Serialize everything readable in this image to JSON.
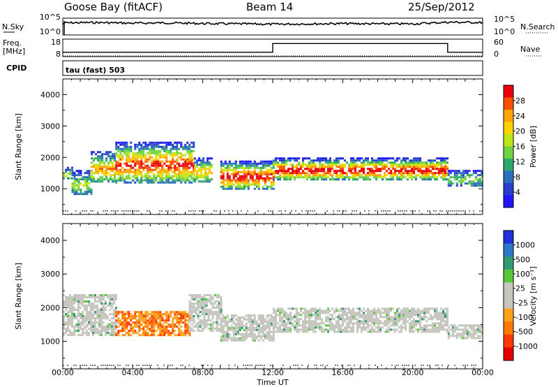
{
  "header": {
    "station": "Goose Bay (fitACF)",
    "beam": "Beam 14",
    "date": "25/Sep/2012"
  },
  "noise_panel": {
    "left_label": "N.Sky",
    "left_tick_top": "10^5",
    "left_tick_bottom": "10^0",
    "right_tick_top": "10^5",
    "right_tick_bottom": "10^0",
    "right_label": "N.Search"
  },
  "freq_panel": {
    "left_label_line1": "Freq.",
    "left_label_line2": "[MHz]",
    "left_tick_top": "18",
    "left_tick_bottom": "8",
    "right_tick_top": "60",
    "right_tick_bottom": "0",
    "right_label": "Nave"
  },
  "cpid_panel": {
    "label": "CPID",
    "value": "tau (fast) 503"
  },
  "time_axis": {
    "title": "Time UT",
    "ticks": [
      "00:00",
      "04:00",
      "08:00",
      "12:00",
      "16:00",
      "20:00",
      "00:00"
    ]
  },
  "range_axis": {
    "title": "Slant Range [km]",
    "ticks": [
      "1000",
      "2000",
      "3000",
      "4000"
    ]
  },
  "power_colorbar": {
    "title": "Power [dB]",
    "labels": [
      "28",
      "24",
      "20",
      "16",
      "12",
      "8",
      "4"
    ],
    "colors": [
      "#e8000b",
      "#ff4f00",
      "#ffa500",
      "#ffd200",
      "#bde619",
      "#6fd444",
      "#2fa86d",
      "#2d6fbf",
      "#2a3fd0",
      "#1f18ff"
    ]
  },
  "velocity_colorbar": {
    "title": "Velocity [m s⁻¹]",
    "labels": [
      "1000",
      "500",
      "100",
      "25",
      "-25",
      "-100",
      "-500",
      "-1000"
    ],
    "colors": [
      "#2130d8",
      "#2e78c5",
      "#2f9a73",
      "#58c83a",
      "#c6c6bf",
      "#c6c6bf",
      "#ffa21b",
      "#ff7a00",
      "#ff3a00",
      "#e50000"
    ]
  },
  "chart_data": [
    {
      "type": "line",
      "name": "noise",
      "x": [
        0,
        0.1,
        2,
        4,
        6,
        8,
        10,
        12,
        14,
        16,
        18,
        20,
        22,
        24
      ],
      "series": [
        {
          "name": "N.Sky",
          "values": [
            3.2,
            3.6,
            3.7,
            3.5,
            3.6,
            3.4,
            3.3,
            3.2,
            3.3,
            3.4,
            3.3,
            3.3,
            3.8,
            3.7
          ]
        }
      ],
      "xlim": [
        0,
        24
      ]
    },
    {
      "type": "line",
      "name": "frequency",
      "x": [
        0,
        12,
        12,
        22,
        22,
        24
      ],
      "series": [
        {
          "name": "Freq.",
          "values": [
            10.5,
            10.5,
            15.5,
            15.5,
            10.5,
            10.5
          ]
        }
      ],
      "xlim": [
        0,
        24
      ],
      "ylim": [
        8,
        18
      ]
    },
    {
      "type": "heatmap",
      "name": "power",
      "xlabel": "Time UT",
      "ylabel": "Slant Range [km]",
      "colorbar": "Power [dB]",
      "xlim": [
        0,
        24
      ],
      "ylim": [
        180,
        4500
      ],
      "regions": [
        {
          "t": [
            0,
            0.5
          ],
          "r": [
            1300,
            1700
          ],
          "level": 7
        },
        {
          "t": [
            0.5,
            1.6
          ],
          "r": [
            800,
            1600
          ],
          "level": 6
        },
        {
          "t": [
            1.6,
            3
          ],
          "r": [
            1200,
            2200
          ],
          "level": 10
        },
        {
          "t": [
            3,
            7.5
          ],
          "r": [
            1200,
            2500
          ],
          "level": 13
        },
        {
          "t": [
            7.5,
            8.5
          ],
          "r": [
            1200,
            2000
          ],
          "level": 9
        },
        {
          "t": [
            9,
            12
          ],
          "r": [
            1000,
            1900
          ],
          "level": 14
        },
        {
          "t": [
            12,
            22
          ],
          "r": [
            1300,
            2000
          ],
          "level": 14
        },
        {
          "t": [
            22,
            24
          ],
          "r": [
            1100,
            1600
          ],
          "level": 5
        }
      ]
    },
    {
      "type": "heatmap",
      "name": "velocity",
      "xlabel": "Time UT",
      "ylabel": "Slant Range [km]",
      "colorbar": "Velocity [m s⁻¹]",
      "xlim": [
        0,
        24
      ],
      "ylim": [
        180,
        4500
      ],
      "regions": [
        {
          "t": [
            0,
            3
          ],
          "r": [
            1200,
            2400
          ],
          "v": 0
        },
        {
          "t": [
            3,
            7.2
          ],
          "r": [
            1200,
            1900
          ],
          "v": -300
        },
        {
          "t": [
            7.2,
            9
          ],
          "r": [
            1300,
            2400
          ],
          "v": 0
        },
        {
          "t": [
            9,
            12
          ],
          "r": [
            1000,
            1800
          ],
          "v": 0
        },
        {
          "t": [
            12,
            22
          ],
          "r": [
            1300,
            2000
          ],
          "v": 0
        },
        {
          "t": [
            22,
            24
          ],
          "r": [
            1100,
            1500
          ],
          "v": 0
        }
      ]
    }
  ]
}
